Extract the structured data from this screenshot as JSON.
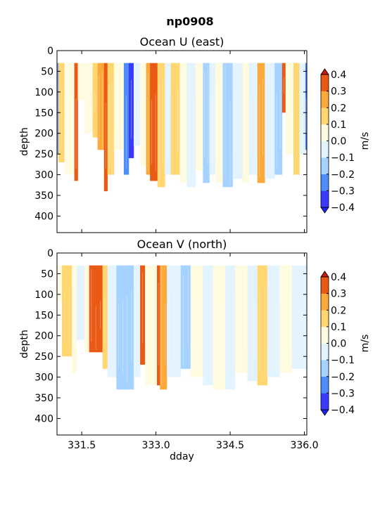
{
  "suptitle": "np0908",
  "chart_data": [
    {
      "type": "heatmap",
      "title": "Ocean U (east)",
      "ylabel": "depth",
      "xlabel": "",
      "xlim": [
        331.0,
        336.05
      ],
      "ylim": [
        440,
        0
      ],
      "xticks": [
        "331.5",
        "333.0",
        "334.5",
        "336.0"
      ],
      "xtick_values": [
        331.5,
        333.0,
        334.5,
        336.0
      ],
      "show_xticklabels": false,
      "yticks": [
        "0",
        "50",
        "100",
        "150",
        "200",
        "250",
        "300",
        "350",
        "400"
      ],
      "ytick_values": [
        0,
        50,
        100,
        150,
        200,
        250,
        300,
        350,
        400
      ],
      "colorbar": {
        "label": "m/s",
        "levels": [
          -0.4,
          -0.3,
          -0.2,
          -0.1,
          0.0,
          0.1,
          0.2,
          0.3,
          0.4
        ],
        "tick_labels": [
          "−0.4",
          "−0.3",
          "−0.2",
          "−0.1",
          "0.0",
          "0.1",
          "0.2",
          "0.3",
          "0.4"
        ],
        "extend": "both"
      },
      "bands": [
        {
          "x0": 331.0,
          "x1": 331.03,
          "d1": 250,
          "v": -0.25
        },
        {
          "x0": 331.03,
          "x1": 331.15,
          "d1": 270,
          "v": 0.12
        },
        {
          "x0": 331.15,
          "x1": 331.35,
          "d1": 300,
          "v": 0.05
        },
        {
          "x0": 331.35,
          "x1": 331.42,
          "d1": 315,
          "v": 0.35
        },
        {
          "x0": 331.42,
          "x1": 331.55,
          "d1": 120,
          "v": 0.05
        },
        {
          "x0": 331.55,
          "x1": 331.72,
          "d1": 200,
          "v": 0.08
        },
        {
          "x0": 331.72,
          "x1": 331.82,
          "d1": 210,
          "v": 0.18
        },
        {
          "x0": 331.82,
          "x1": 331.95,
          "d1": 240,
          "v": 0.25
        },
        {
          "x0": 331.95,
          "x1": 332.02,
          "d1": 340,
          "v": 0.32
        },
        {
          "x0": 332.02,
          "x1": 332.15,
          "d1": 300,
          "v": 0.15
        },
        {
          "x0": 332.15,
          "x1": 332.35,
          "d1": 240,
          "v": 0.05
        },
        {
          "x0": 332.35,
          "x1": 332.45,
          "d1": 300,
          "v": -0.22
        },
        {
          "x0": 332.45,
          "x1": 332.55,
          "d1": 260,
          "v": -0.32
        },
        {
          "x0": 332.55,
          "x1": 332.68,
          "d1": 230,
          "v": -0.08
        },
        {
          "x0": 332.68,
          "x1": 332.8,
          "d1": 280,
          "v": 0.05
        },
        {
          "x0": 332.8,
          "x1": 332.88,
          "d1": 300,
          "v": 0.22
        },
        {
          "x0": 332.88,
          "x1": 333.03,
          "d1": 315,
          "v": 0.32
        },
        {
          "x0": 333.03,
          "x1": 333.18,
          "d1": 330,
          "v": 0.15
        },
        {
          "x0": 333.18,
          "x1": 333.3,
          "d1": 300,
          "v": -0.05
        },
        {
          "x0": 333.3,
          "x1": 333.48,
          "d1": 300,
          "v": 0.18
        },
        {
          "x0": 333.48,
          "x1": 333.62,
          "d1": 320,
          "v": 0.05
        },
        {
          "x0": 333.62,
          "x1": 333.8,
          "d1": 330,
          "v": -0.08
        },
        {
          "x0": 333.8,
          "x1": 333.95,
          "d1": 290,
          "v": 0.05
        },
        {
          "x0": 333.95,
          "x1": 334.08,
          "d1": 320,
          "v": -0.15
        },
        {
          "x0": 334.08,
          "x1": 334.2,
          "d1": 300,
          "v": -0.05
        },
        {
          "x0": 334.2,
          "x1": 334.35,
          "d1": 320,
          "v": 0.05
        },
        {
          "x0": 334.35,
          "x1": 334.55,
          "d1": 330,
          "v": -0.15
        },
        {
          "x0": 334.55,
          "x1": 334.75,
          "d1": 310,
          "v": -0.05
        },
        {
          "x0": 334.75,
          "x1": 334.88,
          "d1": 320,
          "v": 0.05
        },
        {
          "x0": 334.88,
          "x1": 335.05,
          "d1": 300,
          "v": -0.05
        },
        {
          "x0": 335.05,
          "x1": 335.2,
          "d1": 320,
          "v": 0.22
        },
        {
          "x0": 335.2,
          "x1": 335.4,
          "d1": 310,
          "v": -0.08
        },
        {
          "x0": 335.4,
          "x1": 335.55,
          "d1": 300,
          "v": -0.15
        },
        {
          "x0": 335.55,
          "x1": 335.62,
          "d1": 150,
          "v": 0.32
        },
        {
          "x0": 335.62,
          "x1": 335.78,
          "d1": 250,
          "v": 0.05
        },
        {
          "x0": 335.78,
          "x1": 335.9,
          "d1": 300,
          "v": 0.15
        },
        {
          "x0": 335.9,
          "x1": 336.02,
          "d1": 250,
          "v": -0.05
        },
        {
          "x0": 336.02,
          "x1": 336.05,
          "d1": 240,
          "v": -0.22
        }
      ]
    },
    {
      "type": "heatmap",
      "title": "Ocean V (north)",
      "ylabel": "depth",
      "xlabel": "dday",
      "xlim": [
        331.0,
        336.05
      ],
      "ylim": [
        440,
        0
      ],
      "xticks": [
        "331.5",
        "333.0",
        "334.5",
        "336.0"
      ],
      "xtick_values": [
        331.5,
        333.0,
        334.5,
        336.0
      ],
      "show_xticklabels": true,
      "yticks": [
        "0",
        "50",
        "100",
        "150",
        "200",
        "250",
        "300",
        "350",
        "400"
      ],
      "ytick_values": [
        0,
        50,
        100,
        150,
        200,
        250,
        300,
        350,
        400
      ],
      "colorbar": {
        "label": "m/s",
        "levels": [
          -0.4,
          -0.3,
          -0.2,
          -0.1,
          0.0,
          0.1,
          0.2,
          0.3,
          0.4
        ],
        "tick_labels": [
          "−0.4",
          "−0.3",
          "−0.2",
          "−0.1",
          "0.0",
          "0.1",
          "0.2",
          "0.3",
          "0.4"
        ],
        "extend": "both"
      },
      "bands": [
        {
          "x0": 331.0,
          "x1": 331.1,
          "d1": 120,
          "v": 0.05
        },
        {
          "x0": 331.1,
          "x1": 331.3,
          "d1": 250,
          "v": 0.12
        },
        {
          "x0": 331.3,
          "x1": 331.4,
          "d1": 290,
          "v": 0.05
        },
        {
          "x0": 331.4,
          "x1": 331.55,
          "d1": 210,
          "v": -0.05
        },
        {
          "x0": 331.55,
          "x1": 331.65,
          "d1": 240,
          "v": 0.05
        },
        {
          "x0": 331.65,
          "x1": 331.92,
          "d1": 240,
          "v": 0.35
        },
        {
          "x0": 331.92,
          "x1": 332.02,
          "d1": 280,
          "v": 0.15
        },
        {
          "x0": 332.02,
          "x1": 332.2,
          "d1": 300,
          "v": -0.05
        },
        {
          "x0": 332.2,
          "x1": 332.55,
          "d1": 330,
          "v": -0.15
        },
        {
          "x0": 332.55,
          "x1": 332.68,
          "d1": 300,
          "v": -0.08
        },
        {
          "x0": 332.68,
          "x1": 332.78,
          "d1": 270,
          "v": 0.32
        },
        {
          "x0": 332.78,
          "x1": 333.02,
          "d1": 320,
          "v": 0.05
        },
        {
          "x0": 333.02,
          "x1": 333.08,
          "d1": 320,
          "v": 0.32
        },
        {
          "x0": 333.08,
          "x1": 333.22,
          "d1": 330,
          "v": 0.22
        },
        {
          "x0": 333.22,
          "x1": 333.5,
          "d1": 300,
          "v": -0.05
        },
        {
          "x0": 333.5,
          "x1": 333.7,
          "d1": 280,
          "v": -0.12
        },
        {
          "x0": 333.7,
          "x1": 333.95,
          "d1": 300,
          "v": 0.05
        },
        {
          "x0": 333.95,
          "x1": 334.15,
          "d1": 320,
          "v": -0.05
        },
        {
          "x0": 334.15,
          "x1": 334.4,
          "d1": 330,
          "v": 0.05
        },
        {
          "x0": 334.4,
          "x1": 334.6,
          "d1": 330,
          "v": -0.08
        },
        {
          "x0": 334.6,
          "x1": 334.85,
          "d1": 290,
          "v": 0.05
        },
        {
          "x0": 334.85,
          "x1": 335.05,
          "d1": 310,
          "v": -0.05
        },
        {
          "x0": 335.05,
          "x1": 335.25,
          "d1": 320,
          "v": 0.12
        },
        {
          "x0": 335.25,
          "x1": 335.5,
          "d1": 300,
          "v": -0.05
        },
        {
          "x0": 335.5,
          "x1": 335.75,
          "d1": 290,
          "v": 0.05
        },
        {
          "x0": 335.75,
          "x1": 336.05,
          "d1": 280,
          "v": -0.05
        }
      ]
    }
  ]
}
